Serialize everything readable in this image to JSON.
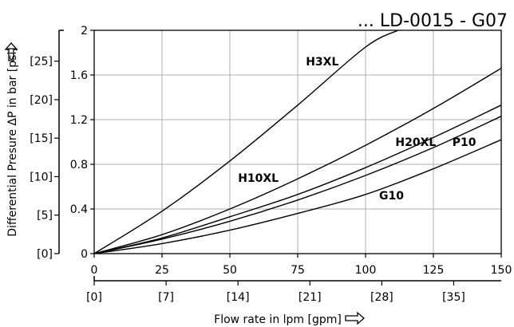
{
  "chart_data": {
    "type": "line",
    "title": "... LD-0015 - G07",
    "xlabel": "Flow rate in lpm [gpm]",
    "ylabel": "Differential Presure ΔP in bar [psi]",
    "xlim": [
      0,
      150
    ],
    "ylim": [
      0,
      2
    ],
    "x_ticks": [
      0,
      25,
      50,
      75,
      100,
      125,
      150
    ],
    "y_ticks": [
      0,
      0.4,
      0.8,
      1.2,
      1.6,
      2
    ],
    "secondary_x_ticks": [
      {
        "value": 0,
        "label": "[0]"
      },
      {
        "value": 7,
        "label": "[7]"
      },
      {
        "value": 14,
        "label": "[14]"
      },
      {
        "value": 21,
        "label": "[21]"
      },
      {
        "value": 28,
        "label": "[28]"
      },
      {
        "value": 35,
        "label": "[35]"
      }
    ],
    "secondary_y_ticks": [
      {
        "value": 0,
        "label": "[0]"
      },
      {
        "value": 5,
        "label": "[5]"
      },
      {
        "value": 10,
        "label": "[10]"
      },
      {
        "value": 15,
        "label": "[15]"
      },
      {
        "value": 20,
        "label": "[20]"
      },
      {
        "value": 25,
        "label": "[25]"
      }
    ],
    "grid": true,
    "series": [
      {
        "name": "H3XL",
        "x": [
          0,
          25,
          50,
          75,
          100,
          112
        ],
        "y": [
          0,
          0.38,
          0.83,
          1.33,
          1.85,
          2.0
        ]
      },
      {
        "name": "H10XL",
        "x": [
          0,
          25,
          50,
          75,
          100,
          125,
          150
        ],
        "y": [
          0,
          0.17,
          0.4,
          0.67,
          0.97,
          1.3,
          1.66
        ]
      },
      {
        "name": "H20XL",
        "x": [
          0,
          25,
          50,
          75,
          100,
          125,
          150
        ],
        "y": [
          0,
          0.14,
          0.33,
          0.53,
          0.77,
          1.04,
          1.33
        ]
      },
      {
        "name": "P10",
        "x": [
          0,
          25,
          50,
          75,
          100,
          125,
          150
        ],
        "y": [
          0,
          0.13,
          0.29,
          0.48,
          0.7,
          0.95,
          1.23
        ]
      },
      {
        "name": "G10",
        "x": [
          0,
          25,
          50,
          75,
          100,
          125,
          150
        ],
        "y": [
          0,
          0.09,
          0.21,
          0.36,
          0.53,
          0.76,
          1.02
        ]
      }
    ],
    "annotations": [
      {
        "text": "H3XL",
        "x": 78,
        "y": 1.72
      },
      {
        "text": "H10XL",
        "x": 53,
        "y": 0.68
      },
      {
        "text": "H20XL",
        "x": 111,
        "y": 1.0
      },
      {
        "text": "P10",
        "x": 132,
        "y": 1.0
      },
      {
        "text": "G10",
        "x": 105,
        "y": 0.52
      }
    ]
  }
}
